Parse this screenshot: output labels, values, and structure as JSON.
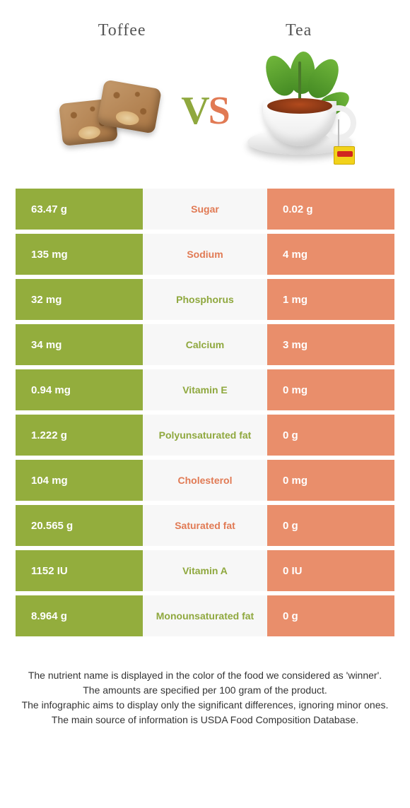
{
  "colors": {
    "left": "#93ad3d",
    "right": "#e98e6b",
    "row_mid_bg": "#f7f7f7",
    "left_label": "#8fa83e",
    "right_label": "#e17a54"
  },
  "header": {
    "left_title": "Toffee",
    "right_title": "Tea"
  },
  "vs": {
    "v": "V",
    "s": "S"
  },
  "rows": [
    {
      "name": "Sugar",
      "left": "63.47 g",
      "right": "0.02 g",
      "winner": "left",
      "label_color": "#e17a54"
    },
    {
      "name": "Sodium",
      "left": "135 mg",
      "right": "4 mg",
      "winner": "left",
      "label_color": "#e17a54"
    },
    {
      "name": "Phosphorus",
      "left": "32 mg",
      "right": "1 mg",
      "winner": "left",
      "label_color": "#8fa83e"
    },
    {
      "name": "Calcium",
      "left": "34 mg",
      "right": "3 mg",
      "winner": "left",
      "label_color": "#8fa83e"
    },
    {
      "name": "Vitamin E",
      "left": "0.94 mg",
      "right": "0 mg",
      "winner": "left",
      "label_color": "#8fa83e"
    },
    {
      "name": "Polyunsaturated fat",
      "left": "1.222 g",
      "right": "0 g",
      "winner": "left",
      "label_color": "#8fa83e"
    },
    {
      "name": "Cholesterol",
      "left": "104 mg",
      "right": "0 mg",
      "winner": "left",
      "label_color": "#e17a54"
    },
    {
      "name": "Saturated fat",
      "left": "20.565 g",
      "right": "0 g",
      "winner": "left",
      "label_color": "#e17a54"
    },
    {
      "name": "Vitamin A",
      "left": "1152 IU",
      "right": "0 IU",
      "winner": "left",
      "label_color": "#8fa83e"
    },
    {
      "name": "Monounsaturated fat",
      "left": "8.964 g",
      "right": "0 g",
      "winner": "left",
      "label_color": "#8fa83e"
    }
  ],
  "footer": {
    "l1": "The nutrient name is displayed in the color of the food we considered as 'winner'.",
    "l2": "The amounts are specified per 100 gram of the product.",
    "l3": "The infographic aims to display only the significant differences, ignoring minor ones.",
    "l4": "The main source of information is USDA Food Composition Database."
  }
}
